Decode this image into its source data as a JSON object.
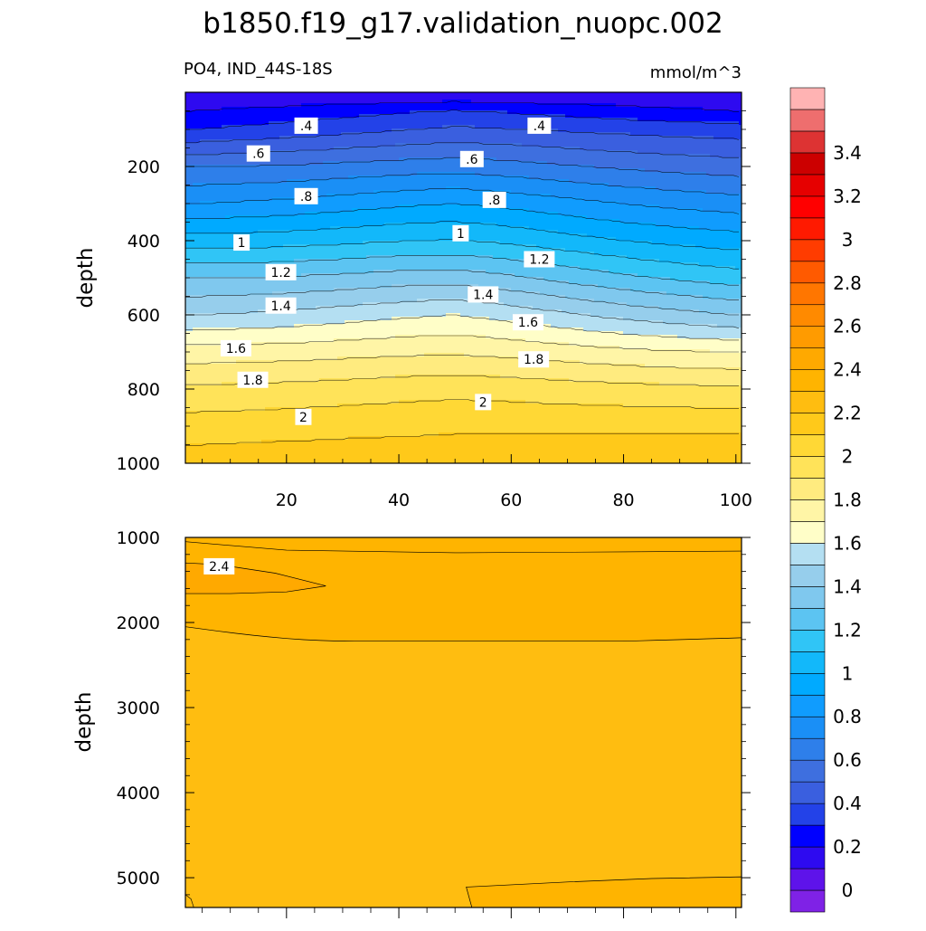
{
  "chart_data": {
    "type": "heatmap",
    "title": "b1850.f19_g17.validation_nuopc.002",
    "subtitle_left": "PO4, IND_44S-18S",
    "units": "mmol/m^3",
    "xlim": [
      2,
      101
    ],
    "x_ticks": [
      20,
      40,
      60,
      80,
      100
    ],
    "colorbar": {
      "levels": [
        -0.1,
        0,
        0.1,
        0.2,
        0.3,
        0.4,
        0.5,
        0.6,
        0.7,
        0.8,
        0.9,
        1.0,
        1.1,
        1.2,
        1.3,
        1.4,
        1.5,
        1.6,
        1.7,
        1.8,
        1.9,
        2.0,
        2.1,
        2.2,
        2.3,
        2.4,
        2.5,
        2.6,
        2.7,
        2.8,
        2.9,
        3.0,
        3.1,
        3.2,
        3.3,
        3.4,
        3.5,
        3.6
      ],
      "colors": [
        "#7f22e6",
        "#5e13ea",
        "#2e0af0",
        "#0000ff",
        "#2342e8",
        "#3a5fdf",
        "#3e6fdf",
        "#2e7fea",
        "#1a8ff6",
        "#109cfe",
        "#00aaff",
        "#12b8fa",
        "#30c5f6",
        "#5cc4f2",
        "#7fc8ee",
        "#96ceec",
        "#b4dff2",
        "#fffec8",
        "#fff5a6",
        "#ffeb7f",
        "#ffe359",
        "#ffd835",
        "#ffc91a",
        "#ffbd10",
        "#ffb400",
        "#ffa900",
        "#ff9b00",
        "#ff8a00",
        "#ff7600",
        "#ff5a00",
        "#ff3c00",
        "#ff1a00",
        "#ff0000",
        "#e60000",
        "#cc0000",
        "#dd3333",
        "#ee6e6e",
        "#ffb3b3"
      ],
      "tick_labels": [
        "0",
        "0.2",
        "0.4",
        "0.6",
        "0.8",
        "1",
        "1.2",
        "1.4",
        "1.6",
        "1.8",
        "2",
        "2.2",
        "2.4",
        "2.6",
        "2.8",
        "3",
        "3.2",
        "3.4"
      ],
      "tick_values": [
        0,
        0.2,
        0.4,
        0.6,
        0.8,
        1.0,
        1.2,
        1.4,
        1.6,
        1.8,
        2.0,
        2.2,
        2.4,
        2.6,
        2.8,
        3.0,
        3.2,
        3.4
      ]
    },
    "panels": [
      {
        "name": "upper",
        "ylabel": "depth",
        "ylim": [
          0,
          1000
        ],
        "y_ticks": [
          200,
          400,
          600,
          800,
          1000
        ],
        "depth_profile": [
          {
            "depth": 0,
            "x2": 0.1,
            "x50": 0.1,
            "x101": 0.1
          },
          {
            "depth": 50,
            "x2": 0.2,
            "x50": 0.3,
            "x101": 0.2
          },
          {
            "depth": 100,
            "x2": 0.3,
            "x50": 0.4,
            "x101": 0.35
          },
          {
            "depth": 200,
            "x2": 0.6,
            "x50": 0.62,
            "x101": 0.55
          },
          {
            "depth": 300,
            "x2": 0.8,
            "x50": 0.85,
            "x101": 0.75
          },
          {
            "depth": 400,
            "x2": 1.05,
            "x50": 1.05,
            "x101": 0.95
          },
          {
            "depth": 500,
            "x2": 1.3,
            "x50": 1.3,
            "x101": 1.15
          },
          {
            "depth": 600,
            "x2": 1.5,
            "x50": 1.55,
            "x101": 1.4
          },
          {
            "depth": 700,
            "x2": 1.75,
            "x50": 1.75,
            "x101": 1.7
          },
          {
            "depth": 800,
            "x2": 1.92,
            "x50": 1.95,
            "x101": 1.92
          },
          {
            "depth": 900,
            "x2": 2.05,
            "x50": 2.08,
            "x101": 2.08
          },
          {
            "depth": 1000,
            "x2": 2.15,
            "x50": 2.18,
            "x101": 2.2
          }
        ],
        "contour_labels": [
          {
            "text": ".4",
            "x": 23.5,
            "depth": 90
          },
          {
            "text": ".4",
            "x": 65,
            "depth": 90
          },
          {
            "text": ".6",
            "x": 15,
            "depth": 165
          },
          {
            "text": ".6",
            "x": 53,
            "depth": 180
          },
          {
            "text": ".8",
            "x": 23.5,
            "depth": 280
          },
          {
            "text": ".8",
            "x": 57,
            "depth": 290
          },
          {
            "text": "1",
            "x": 12,
            "depth": 405
          },
          {
            "text": "1",
            "x": 51,
            "depth": 380
          },
          {
            "text": "1.2",
            "x": 19,
            "depth": 485
          },
          {
            "text": "1.2",
            "x": 65,
            "depth": 450
          },
          {
            "text": "1.4",
            "x": 19,
            "depth": 575
          },
          {
            "text": "1.4",
            "x": 55,
            "depth": 545
          },
          {
            "text": "1.6",
            "x": 11,
            "depth": 690
          },
          {
            "text": "1.6",
            "x": 63,
            "depth": 620
          },
          {
            "text": "1.8",
            "x": 14,
            "depth": 775
          },
          {
            "text": "1.8",
            "x": 64,
            "depth": 720
          },
          {
            "text": "2",
            "x": 23,
            "depth": 875
          },
          {
            "text": "2",
            "x": 55,
            "depth": 835
          }
        ]
      },
      {
        "name": "lower",
        "ylabel": "depth",
        "ylim": [
          1000,
          5350
        ],
        "y_ticks": [
          1000,
          2000,
          3000,
          4000,
          5000
        ],
        "regions": [
          {
            "value": 2.4,
            "description": "x 2-27, depth 1300-1650"
          },
          {
            "value": 2.35,
            "description": "depth 1000-2200"
          },
          {
            "value": 2.28,
            "description": "depth 2200-5350"
          }
        ],
        "contour_labels": [
          {
            "text": "2.4",
            "x": 8,
            "depth": 1350
          }
        ]
      }
    ]
  }
}
